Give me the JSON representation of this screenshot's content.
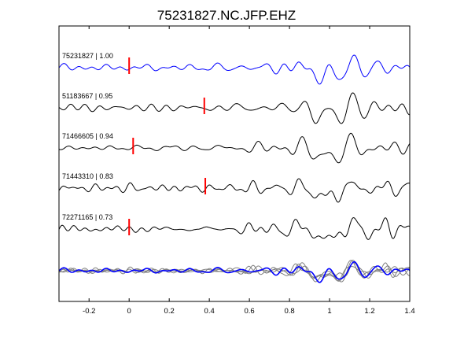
{
  "chart_data": {
    "type": "line",
    "title": "75231827.NC.JFP.EHZ",
    "xlabel": "",
    "ylabel": "",
    "xlim": [
      -0.35,
      1.4
    ],
    "x_ticks": [
      -0.2,
      0,
      0.2,
      0.4,
      0.6,
      0.8,
      1,
      1.2,
      1.4
    ],
    "x_tick_labels": [
      "-0.2",
      "0",
      "0.2",
      "0.4",
      "0.6",
      "0.8",
      "1",
      "1.2",
      "1.4"
    ],
    "grid": false,
    "legend": "none",
    "traces": [
      {
        "label": "75231827 | 1.00",
        "pick_time": 0.0,
        "color": "#0000ff",
        "seed": 1
      },
      {
        "label": "51183667 | 0.95",
        "pick_time": 0.375,
        "color": "#000000",
        "seed": 2
      },
      {
        "label": "71466605 | 0.94",
        "pick_time": 0.02,
        "color": "#000000",
        "seed": 3
      },
      {
        "label": "71443310 | 0.83",
        "pick_time": 0.38,
        "color": "#000000",
        "seed": 4
      },
      {
        "label": "72271165 | 0.73",
        "pick_time": 0.0,
        "color": "#000000",
        "seed": 5
      }
    ],
    "stack": {
      "reference_color": "#0000ff",
      "others_color": "#808080"
    },
    "pick_color": "#ff0000"
  }
}
